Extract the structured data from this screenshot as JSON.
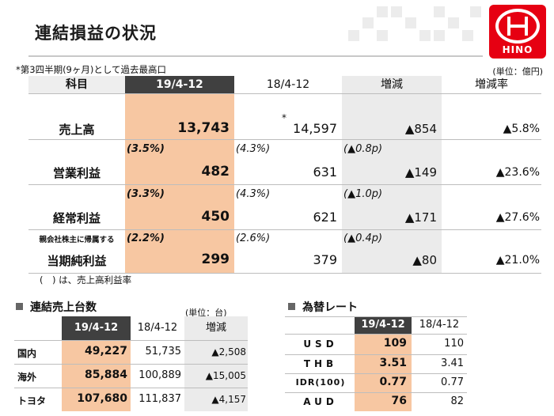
{
  "title": "連結損益の状況",
  "logo_text": "HINO",
  "note": "*第3四半期(9ヶ月)として過去最高口",
  "unit": "(単位：億円)",
  "headers": {
    "item": "科目",
    "current": "19/4-12",
    "previous": "18/4-12",
    "diff": "増減",
    "rate": "増減率"
  },
  "previous_star": "*",
  "rows": [
    {
      "label": "売上高",
      "margin_cur": "",
      "margin_prev": "",
      "margin_diff": "",
      "current": "13,743",
      "previous": "14,597",
      "diff": "▲854",
      "rate": "▲5.8%"
    },
    {
      "label": "営業利益",
      "margin_cur": "(3.5%)",
      "margin_prev": "(4.3%)",
      "margin_diff": "(▲0.8p)",
      "current": "482",
      "previous": "631",
      "diff": "▲149",
      "rate": "▲23.6%"
    },
    {
      "label": "経常利益",
      "margin_cur": "(3.3%)",
      "margin_prev": "(4.3%)",
      "margin_diff": "(▲1.0p)",
      "current": "450",
      "previous": "621",
      "diff": "▲171",
      "rate": "▲27.6%"
    },
    {
      "label_small": "親会社株主に帰属する",
      "label": "当期純利益",
      "margin_cur": "(2.2%)",
      "margin_prev": "(2.6%)",
      "margin_diff": "(▲0.4p)",
      "current": "299",
      "previous": "379",
      "diff": "▲80",
      "rate": "▲21.0%"
    }
  ],
  "footnote": "(　) は、売上高利益率",
  "sales_units": {
    "title": "連結売上台数",
    "unit": "(単位：台)",
    "headers": {
      "current": "19/4-12",
      "previous": "18/4-12",
      "diff": "増減"
    },
    "rows": [
      {
        "label": "国内",
        "current": "49,227",
        "previous": "51,735",
        "diff": "▲2,508"
      },
      {
        "label": "海外",
        "current": "85,884",
        "previous": "100,889",
        "diff": "▲15,005"
      },
      {
        "label": "トヨタ",
        "current": "107,680",
        "previous": "111,837",
        "diff": "▲4,157"
      }
    ]
  },
  "fx": {
    "title": "為替レート",
    "headers": {
      "current": "19/4-12",
      "previous": "18/4-12"
    },
    "rows": [
      {
        "label": "USD",
        "current": "109",
        "previous": "110"
      },
      {
        "label": "THB",
        "current": "3.51",
        "previous": "3.41"
      },
      {
        "label": "IDR(100)",
        "current": "0.77",
        "previous": "0.77"
      },
      {
        "label": "AUD",
        "current": "76",
        "previous": "82"
      }
    ]
  },
  "colors": {
    "accent_red": "#e60012",
    "highlight": "#f7c7a2",
    "header_dark": "#404040",
    "diff_bg": "#ebebeb"
  }
}
